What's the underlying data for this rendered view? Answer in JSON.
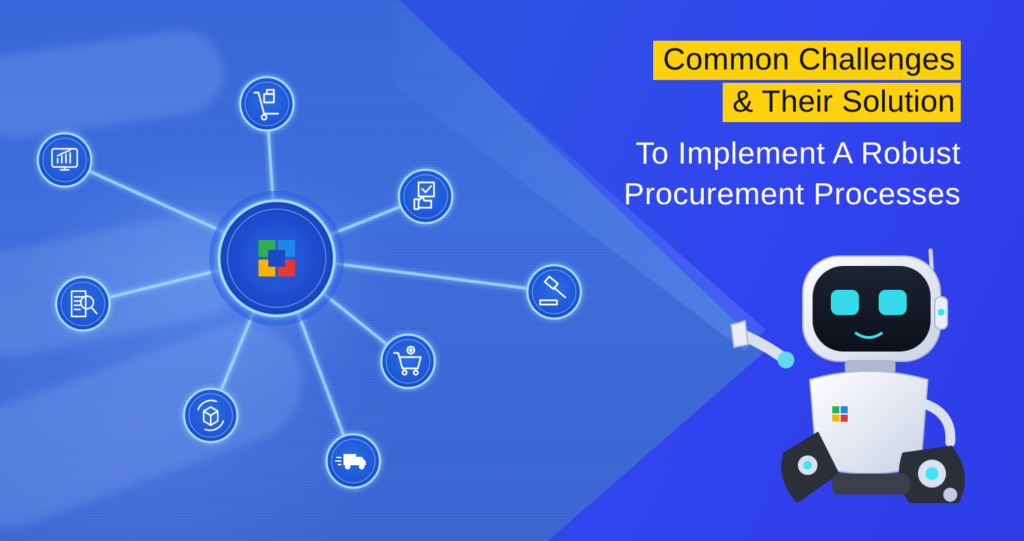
{
  "headline": {
    "line1": "Common Challenges",
    "line2": "& Their Solution"
  },
  "subheadline": {
    "line1": "To Implement A Robust",
    "line2": "Procurement Processes"
  },
  "hub": {
    "icon": "brand-logo-icon"
  },
  "nodes": [
    {
      "icon": "hand-truck-icon"
    },
    {
      "icon": "checklist-thumbs-up-icon"
    },
    {
      "icon": "gavel-icon"
    },
    {
      "icon": "cart-gear-icon"
    },
    {
      "icon": "delivery-truck-icon"
    },
    {
      "icon": "box-cycle-icon"
    },
    {
      "icon": "document-search-icon"
    },
    {
      "icon": "monitor-chart-icon"
    }
  ],
  "colors": {
    "highlight": "#fdd10b",
    "background": "#2f4fe6",
    "robot_eyes": "#37e6f5",
    "node_glow": "#8fd6ff"
  }
}
